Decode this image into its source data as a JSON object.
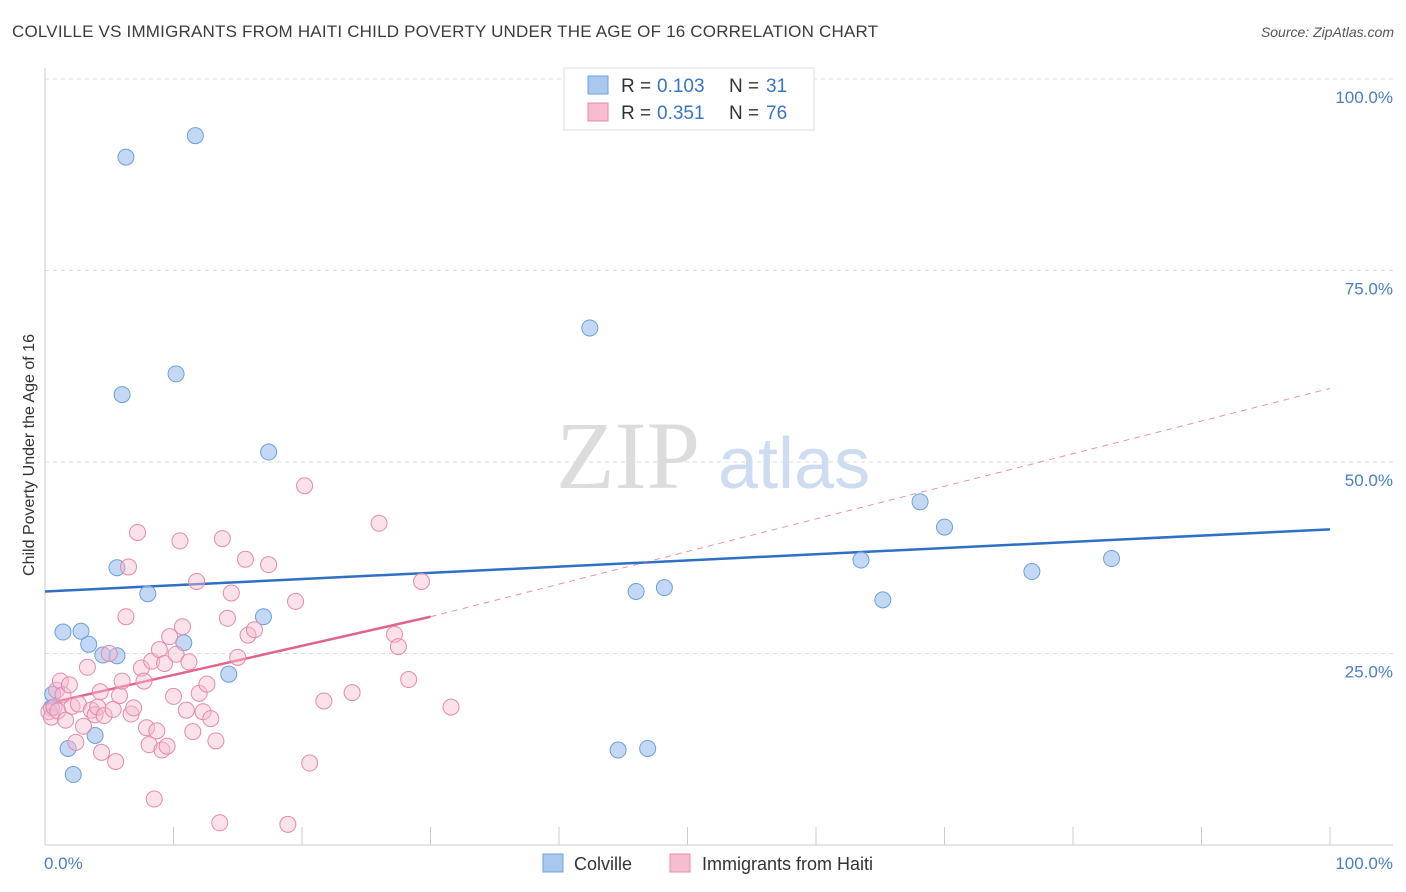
{
  "header": {
    "title": "COLVILLE VS IMMIGRANTS FROM HAITI CHILD POVERTY UNDER THE AGE OF 16 CORRELATION CHART",
    "source": "Source: ZipAtlas.com"
  },
  "watermark": {
    "zip": "ZIP",
    "atlas": "atlas"
  },
  "legend_top": {
    "rows": [
      {
        "r_label": "R = ",
        "r_value": "0.103",
        "n_label": "N = ",
        "n_value": "31",
        "color": "#a9c8ef",
        "stroke": "#6f9fd8"
      },
      {
        "r_label": "R = ",
        "r_value": "0.351",
        "n_label": "N = ",
        "n_value": "76",
        "color": "#f6bdd0",
        "stroke": "#e58aa9"
      }
    ]
  },
  "chart_data": {
    "type": "scatter",
    "ylabel": "Child Poverty Under the Age of 16",
    "xlim": [
      0,
      100
    ],
    "ylim": [
      0,
      100
    ],
    "x_tick_labels": [
      "0.0%",
      "100.0%"
    ],
    "y_tick_labels": [
      "25.0%",
      "50.0%",
      "75.0%",
      "100.0%"
    ],
    "y_ticks": [
      25,
      50,
      75,
      100
    ],
    "grid": true,
    "legend_position": "top-center",
    "series": [
      {
        "name": "Colville",
        "color": "#a9c8ef",
        "stroke": "#6f9fd8",
        "line_color": "#2f6fc4",
        "trend": {
          "x0": 0,
          "y0": 33.1,
          "x1": 100,
          "y1": 41.2,
          "dashed_from": null
        },
        "points": [
          [
            0.6,
            19.7
          ],
          [
            0.5,
            17.9
          ],
          [
            1.4,
            27.8
          ],
          [
            1.8,
            12.6
          ],
          [
            2.2,
            9.2
          ],
          [
            2.8,
            27.9
          ],
          [
            3.4,
            26.2
          ],
          [
            3.9,
            14.3
          ],
          [
            4.5,
            24.8
          ],
          [
            5.6,
            24.7
          ],
          [
            5.6,
            36.2
          ],
          [
            6.0,
            58.8
          ],
          [
            6.3,
            89.8
          ],
          [
            8.0,
            32.8
          ],
          [
            10.2,
            61.5
          ],
          [
            10.8,
            26.4
          ],
          [
            11.7,
            92.6
          ],
          [
            14.3,
            22.3
          ],
          [
            17.0,
            29.8
          ],
          [
            17.4,
            51.3
          ],
          [
            42.4,
            67.5
          ],
          [
            44.6,
            12.4
          ],
          [
            46.9,
            12.6
          ],
          [
            46.0,
            33.1
          ],
          [
            48.2,
            33.6
          ],
          [
            63.5,
            37.2
          ],
          [
            65.2,
            32.0
          ],
          [
            68.1,
            44.8
          ],
          [
            70.0,
            41.5
          ],
          [
            76.8,
            35.7
          ],
          [
            83.0,
            37.4
          ]
        ]
      },
      {
        "name": "Immigrants from Haiti",
        "color": "#f6bdd0",
        "stroke": "#e58aa9",
        "line_color": "#e0648c",
        "trend": {
          "x0": 0,
          "y0": 18.4,
          "x1": 30,
          "y1": 29.8,
          "dashed_to_x": 100,
          "dashed_to_y": 59.6
        },
        "points": [
          [
            0.3,
            17.4
          ],
          [
            0.5,
            16.7
          ],
          [
            0.7,
            18.0
          ],
          [
            0.9,
            20.2
          ],
          [
            1.0,
            17.5
          ],
          [
            1.2,
            21.4
          ],
          [
            1.4,
            19.6
          ],
          [
            1.6,
            16.3
          ],
          [
            1.9,
            20.9
          ],
          [
            2.1,
            18.1
          ],
          [
            2.4,
            13.4
          ],
          [
            2.6,
            18.4
          ],
          [
            3.0,
            15.5
          ],
          [
            3.3,
            23.2
          ],
          [
            3.6,
            17.6
          ],
          [
            3.9,
            17.0
          ],
          [
            4.1,
            18.0
          ],
          [
            4.4,
            12.1
          ],
          [
            4.6,
            16.9
          ],
          [
            5.0,
            25.0
          ],
          [
            5.3,
            17.7
          ],
          [
            5.5,
            10.9
          ],
          [
            5.8,
            19.5
          ],
          [
            6.0,
            21.4
          ],
          [
            6.3,
            29.8
          ],
          [
            6.5,
            36.3
          ],
          [
            6.7,
            17.1
          ],
          [
            6.9,
            17.9
          ],
          [
            7.2,
            40.8
          ],
          [
            7.5,
            23.1
          ],
          [
            7.7,
            21.4
          ],
          [
            7.9,
            15.3
          ],
          [
            8.1,
            13.1
          ],
          [
            8.3,
            24.0
          ],
          [
            8.5,
            6.0
          ],
          [
            8.7,
            14.9
          ],
          [
            8.9,
            25.5
          ],
          [
            9.1,
            12.4
          ],
          [
            9.3,
            23.7
          ],
          [
            9.5,
            12.9
          ],
          [
            9.7,
            27.2
          ],
          [
            10.0,
            19.4
          ],
          [
            10.2,
            24.9
          ],
          [
            10.5,
            39.7
          ],
          [
            10.7,
            28.5
          ],
          [
            11.0,
            17.6
          ],
          [
            11.2,
            23.9
          ],
          [
            11.5,
            14.8
          ],
          [
            11.8,
            34.4
          ],
          [
            12.0,
            19.8
          ],
          [
            12.3,
            17.4
          ],
          [
            12.6,
            21.0
          ],
          [
            12.9,
            16.5
          ],
          [
            13.3,
            13.6
          ],
          [
            13.6,
            2.9
          ],
          [
            13.8,
            40.0
          ],
          [
            14.2,
            29.6
          ],
          [
            14.5,
            32.9
          ],
          [
            15.0,
            24.5
          ],
          [
            15.6,
            37.3
          ],
          [
            15.8,
            27.4
          ],
          [
            16.3,
            28.1
          ],
          [
            17.4,
            36.6
          ],
          [
            18.9,
            2.7
          ],
          [
            19.5,
            31.8
          ],
          [
            20.2,
            46.9
          ],
          [
            20.6,
            10.7
          ],
          [
            21.7,
            18.8
          ],
          [
            23.9,
            19.9
          ],
          [
            26.0,
            42.0
          ],
          [
            27.2,
            27.5
          ],
          [
            27.5,
            25.9
          ],
          [
            28.3,
            21.6
          ],
          [
            29.3,
            34.4
          ],
          [
            31.6,
            18.0
          ],
          [
            4.3,
            20.0
          ]
        ]
      }
    ]
  }
}
